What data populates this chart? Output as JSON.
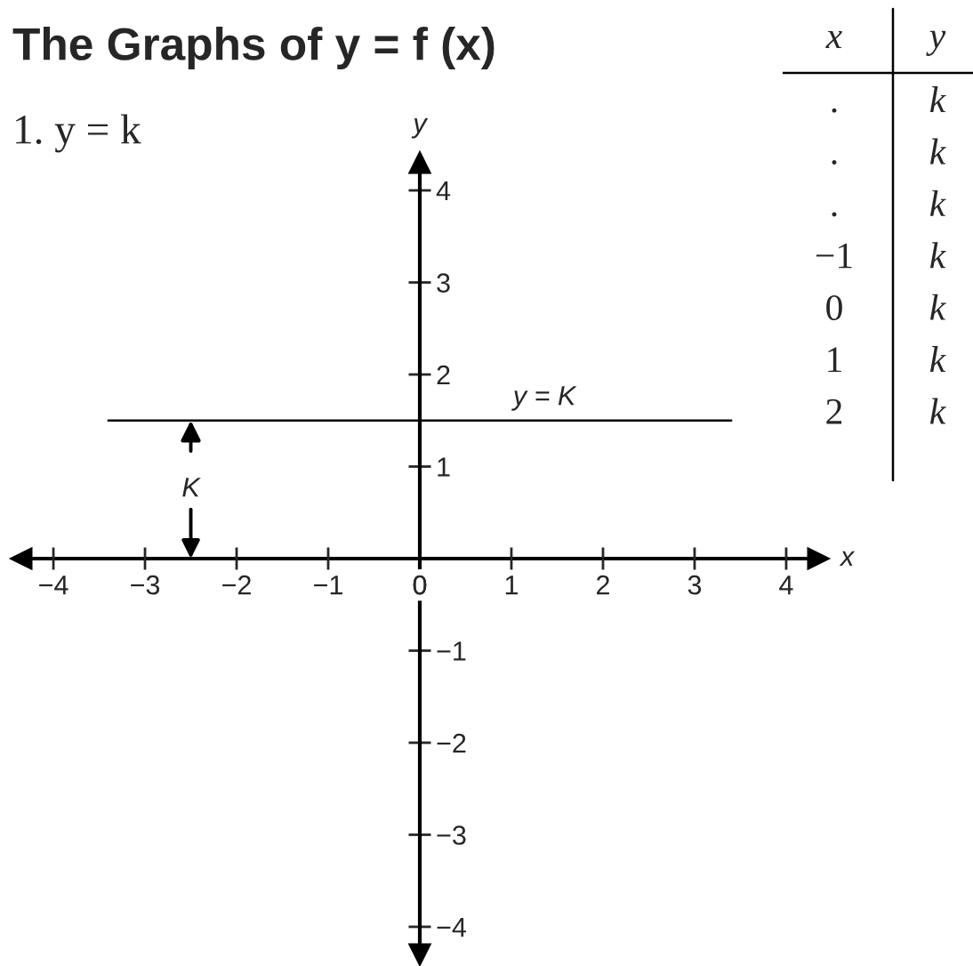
{
  "chart_data": {
    "type": "line",
    "title": "The Graphs of y = f (x)",
    "subtitle": "1. y = k",
    "xlabel": "x",
    "ylabel": "y",
    "series": [
      {
        "name": "y = K",
        "color": "#000000",
        "x": [
          -3.4,
          3.4
        ],
        "values": [
          1.5,
          1.5
        ]
      }
    ],
    "xlim": [
      -4.35,
      4.35
    ],
    "ylim": [
      -4.3,
      4.3
    ],
    "xticks": [
      {
        "value": -4,
        "label": "−4"
      },
      {
        "value": -3,
        "label": "−3"
      },
      {
        "value": -2,
        "label": "−2"
      },
      {
        "value": -1,
        "label": "−1"
      },
      0,
      1,
      2,
      3,
      4
    ],
    "yticks": [
      {
        "value": -4,
        "label": "−4"
      },
      {
        "value": -3,
        "label": "−3"
      },
      {
        "value": -2,
        "label": "−2"
      },
      {
        "value": -1,
        "label": "−1"
      },
      1,
      2,
      3,
      4
    ],
    "annotations": [
      {
        "text": "K",
        "x": -2.5,
        "y": 1.5
      },
      "x",
      "y",
      ".",
      "k",
      ".",
      "k",
      ".",
      "k",
      "−1",
      "k",
      "0",
      "k",
      "1",
      "k",
      "2",
      "k"
    ],
    "grid": false,
    "legend": false,
    "marker": "none",
    "line_style": "solid"
  }
}
